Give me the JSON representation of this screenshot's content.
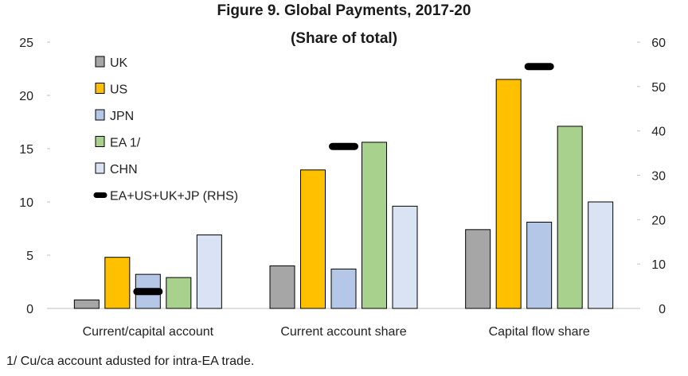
{
  "chart_data": {
    "type": "bar",
    "title": "Figure 9. Global Payments, 2017-20",
    "subtitle": "(Share of total)",
    "categories": [
      "Current/capital account",
      "Current account share",
      "Capital flow share"
    ],
    "series": [
      {
        "name": "UK",
        "values": [
          0.8,
          4.0,
          7.4
        ],
        "color": "#a6a6a6",
        "axis": "left"
      },
      {
        "name": "US",
        "values": [
          4.8,
          13.0,
          21.5
        ],
        "color": "#ffc000",
        "axis": "left"
      },
      {
        "name": "JPN",
        "values": [
          3.2,
          3.7,
          8.1
        ],
        "color": "#b4c7e7",
        "axis": "left"
      },
      {
        "name": "EA 1/",
        "values": [
          2.9,
          15.6,
          17.1
        ],
        "color": "#a9d18e",
        "axis": "left"
      },
      {
        "name": "CHN",
        "values": [
          6.9,
          9.6,
          10.0
        ],
        "color": "#dae3f3",
        "axis": "left"
      }
    ],
    "marker_series": {
      "name": "EA+US+UK+JP (RHS)",
      "values": [
        3.8,
        36.5,
        54.5
      ],
      "color": "#000000",
      "axis": "right"
    },
    "ylim_left": [
      0,
      25
    ],
    "ylim_right": [
      0,
      60
    ],
    "yticks_left": [
      "0",
      "5",
      "10",
      "15",
      "20",
      "25"
    ],
    "yticks_right": [
      "0",
      "10",
      "20",
      "30",
      "40",
      "50",
      "60"
    ],
    "grid": false,
    "legend_position": "top-left",
    "footnote": "1/ Cu/ca account adusted for intra-EA trade."
  }
}
